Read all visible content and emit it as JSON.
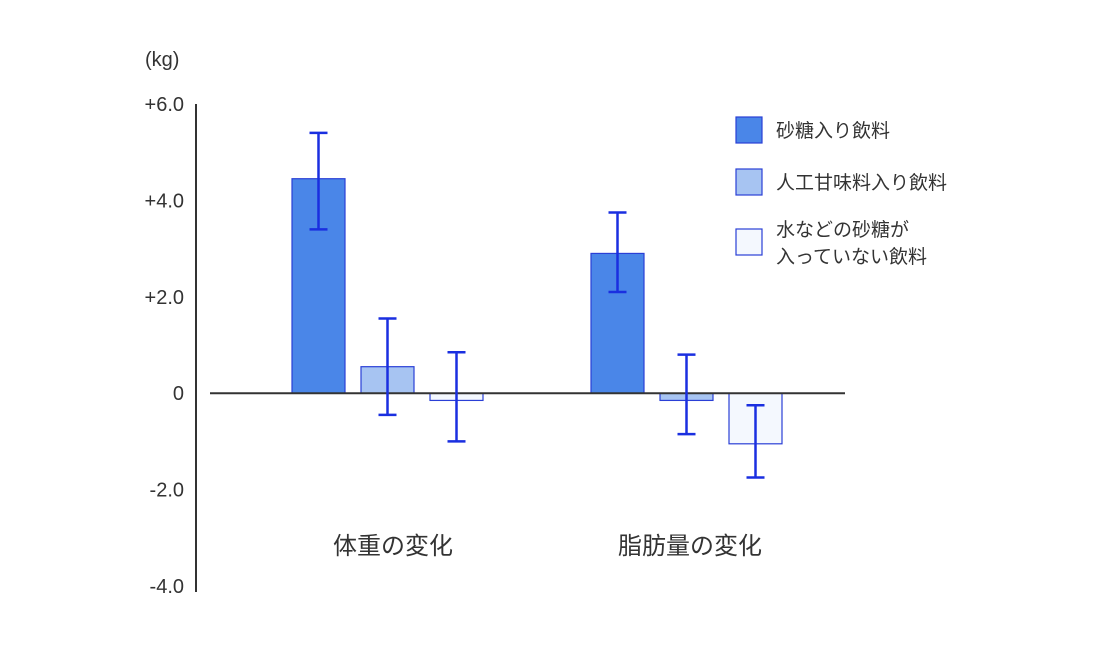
{
  "chart_data": {
    "type": "bar",
    "unit_label": "(kg)",
    "ylim": [
      -4.0,
      6.0
    ],
    "y_ticks": [
      {
        "value": 6,
        "label": "+6.0"
      },
      {
        "value": 4,
        "label": "+4.0"
      },
      {
        "value": 2,
        "label": "+2.0"
      },
      {
        "value": 0,
        "label": "0"
      },
      {
        "value": -2,
        "label": "-2.0"
      },
      {
        "value": -4,
        "label": "-4.0"
      }
    ],
    "categories": [
      "体重の変化",
      "脂肪量の変化"
    ],
    "series": [
      {
        "name": "砂糖入り飲料",
        "color": "#4a86e8",
        "values": [
          4.45,
          2.9
        ],
        "err_low": [
          3.4,
          2.1
        ],
        "err_high": [
          5.4,
          3.75
        ]
      },
      {
        "name": "人工甘味料入り飲料",
        "color": "#a7c4f2",
        "values": [
          0.55,
          -0.15
        ],
        "err_low": [
          -0.45,
          -0.85
        ],
        "err_high": [
          1.55,
          0.8
        ]
      },
      {
        "name": "水などの砂糖が入っていない飲料",
        "legend_lines": [
          "水などの砂糖が",
          "入っていない飲料"
        ],
        "color": "#f4f8fe",
        "values": [
          -0.15,
          -1.05
        ],
        "err_low": [
          -1.0,
          -1.75
        ],
        "err_high": [
          0.85,
          -0.25
        ]
      }
    ],
    "legend_position": "top-right",
    "grid": false,
    "bar_border_color": "#2a3fd6",
    "error_bar_color": "#1a2fe0"
  }
}
